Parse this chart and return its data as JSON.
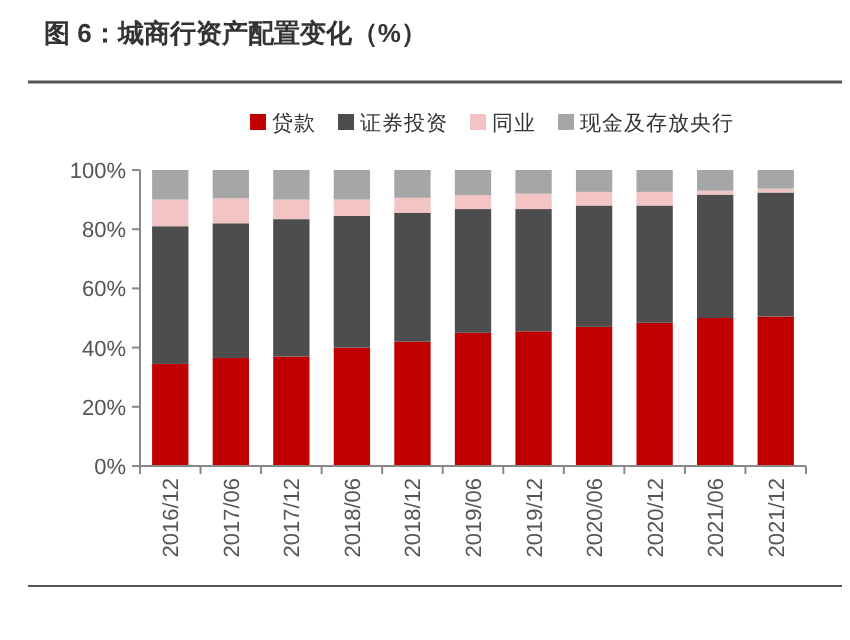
{
  "chart_data": {
    "type": "bar",
    "title": "图 6：城商行资产配置变化（%）",
    "stacked": true,
    "legend": "top",
    "grid": false,
    "categories": [
      "2016/12",
      "2017/06",
      "2017/12",
      "2018/06",
      "2018/12",
      "2019/06",
      "2019/12",
      "2020/06",
      "2020/12",
      "2021/06",
      "2021/12"
    ],
    "series": [
      {
        "name": "贷款",
        "color": "#c00000",
        "values": [
          34.5,
          36.5,
          37,
          40,
          42,
          45,
          45.5,
          47,
          48.4,
          50,
          50.5
        ]
      },
      {
        "name": "证券投资",
        "color": "#4d4d4d",
        "values": [
          46.5,
          45.5,
          46.4,
          44.5,
          43.6,
          41.8,
          41.3,
          41,
          39.6,
          41.7,
          41.9
        ]
      },
      {
        "name": "同业",
        "color": "#f2c4c4",
        "values": [
          9,
          8.4,
          6.6,
          5.5,
          5,
          4.7,
          5.2,
          4.6,
          4.6,
          1.3,
          1.3
        ]
      },
      {
        "name": "现金及存放央行",
        "color": "#a6a6a6",
        "values": [
          10,
          9.6,
          10,
          10,
          9.4,
          8.5,
          8,
          7.4,
          7.4,
          7,
          6.3
        ]
      }
    ],
    "ylim": [
      0,
      100
    ],
    "yticks": [
      {
        "value": 0,
        "label": "0%"
      },
      {
        "value": 20,
        "label": "20%"
      },
      {
        "value": 40,
        "label": "40%"
      },
      {
        "value": 60,
        "label": "60%"
      },
      {
        "value": 80,
        "label": "80%"
      },
      {
        "value": 100,
        "label": "100%"
      }
    ]
  }
}
